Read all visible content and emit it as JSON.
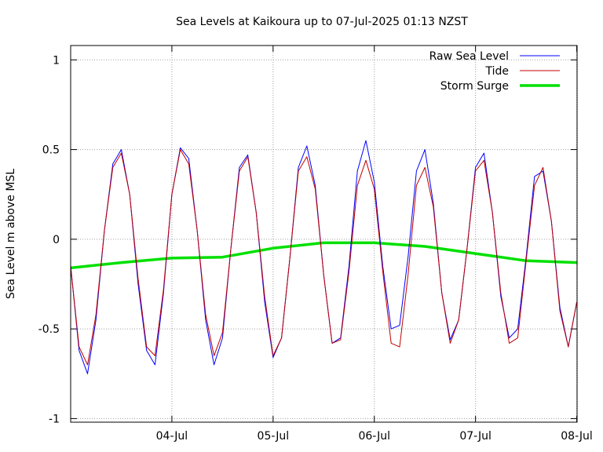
{
  "chart_data": {
    "type": "line",
    "title": "Sea Levels at Kaikoura up to 07-Jul-2025 01:13 NZST",
    "ylabel": "Sea Level m above MSL",
    "xlabel": "",
    "xlim": [
      "2025-07-03 00:00",
      "2025-07-08 00:05"
    ],
    "ylim": [
      -1.02,
      1.08
    ],
    "y_ticks": [
      {
        "value": 1,
        "label": "1"
      },
      {
        "value": 0.5,
        "label": "0.5"
      },
      {
        "value": 0,
        "label": "0"
      },
      {
        "value": -0.5,
        "label": "-0.5"
      },
      {
        "value": -1,
        "label": "-1"
      }
    ],
    "x_ticks": [
      {
        "value": "2025-07-04 00:00",
        "label": "04-Jul"
      },
      {
        "value": "2025-07-05 00:00",
        "label": "05-Jul"
      },
      {
        "value": "2025-07-06 00:00",
        "label": "06-Jul"
      },
      {
        "value": "2025-07-07 00:00",
        "label": "07-Jul"
      },
      {
        "value": "2025-07-08 00:00",
        "label": "08-Jul"
      }
    ],
    "grid": true,
    "legend_position": "top-right",
    "series": [
      {
        "name": "Raw Sea Level",
        "color": "#0000ff",
        "x": [
          "2025-07-03 00:00",
          "2025-07-03 02:00",
          "2025-07-03 04:00",
          "2025-07-03 06:00",
          "2025-07-03 08:00",
          "2025-07-03 10:00",
          "2025-07-03 12:00",
          "2025-07-03 14:00",
          "2025-07-03 16:00",
          "2025-07-03 18:00",
          "2025-07-03 20:00",
          "2025-07-03 22:00",
          "2025-07-04 00:00",
          "2025-07-04 02:00",
          "2025-07-04 04:00",
          "2025-07-04 06:00",
          "2025-07-04 08:00",
          "2025-07-04 10:00",
          "2025-07-04 12:00",
          "2025-07-04 14:00",
          "2025-07-04 16:00",
          "2025-07-04 18:00",
          "2025-07-04 20:00",
          "2025-07-04 22:00",
          "2025-07-05 00:00",
          "2025-07-05 02:00",
          "2025-07-05 04:00",
          "2025-07-05 06:00",
          "2025-07-05 08:00",
          "2025-07-05 10:00",
          "2025-07-05 12:00",
          "2025-07-05 14:00",
          "2025-07-05 16:00",
          "2025-07-05 18:00",
          "2025-07-05 20:00",
          "2025-07-05 22:00",
          "2025-07-06 00:00",
          "2025-07-06 02:00",
          "2025-07-06 04:00",
          "2025-07-06 06:00",
          "2025-07-06 08:00",
          "2025-07-06 10:00",
          "2025-07-06 12:00",
          "2025-07-06 14:00",
          "2025-07-06 16:00",
          "2025-07-06 18:00",
          "2025-07-06 20:00",
          "2025-07-06 22:00",
          "2025-07-07 00:00",
          "2025-07-07 02:00",
          "2025-07-07 04:00",
          "2025-07-07 06:00",
          "2025-07-07 08:00",
          "2025-07-07 10:00",
          "2025-07-07 12:00",
          "2025-07-07 14:00",
          "2025-07-07 16:00",
          "2025-07-07 18:00",
          "2025-07-07 20:00",
          "2025-07-07 22:00",
          "2025-07-08 00:00"
        ],
        "values": [
          -0.15,
          -0.62,
          -0.75,
          -0.45,
          0.05,
          0.42,
          0.5,
          0.25,
          -0.25,
          -0.62,
          -0.7,
          -0.3,
          0.25,
          0.51,
          0.45,
          0.05,
          -0.45,
          -0.7,
          -0.55,
          -0.05,
          0.4,
          0.47,
          0.15,
          -0.35,
          -0.66,
          -0.55,
          -0.1,
          0.4,
          0.52,
          0.3,
          -0.2,
          -0.58,
          -0.55,
          -0.15,
          0.38,
          0.55,
          0.32,
          -0.15,
          -0.5,
          -0.48,
          -0.1,
          0.38,
          0.5,
          0.2,
          -0.3,
          -0.56,
          -0.45,
          -0.05,
          0.4,
          0.48,
          0.15,
          -0.32,
          -0.55,
          -0.5,
          -0.1,
          0.35,
          0.38,
          0.1,
          -0.38,
          -0.6,
          -0.35
        ]
      },
      {
        "name": "Tide",
        "color": "#c00000",
        "x": [
          "2025-07-03 00:00",
          "2025-07-03 02:00",
          "2025-07-03 04:00",
          "2025-07-03 06:00",
          "2025-07-03 08:00",
          "2025-07-03 10:00",
          "2025-07-03 12:00",
          "2025-07-03 14:00",
          "2025-07-03 16:00",
          "2025-07-03 18:00",
          "2025-07-03 20:00",
          "2025-07-03 22:00",
          "2025-07-04 00:00",
          "2025-07-04 02:00",
          "2025-07-04 04:00",
          "2025-07-04 06:00",
          "2025-07-04 08:00",
          "2025-07-04 10:00",
          "2025-07-04 12:00",
          "2025-07-04 14:00",
          "2025-07-04 16:00",
          "2025-07-04 18:00",
          "2025-07-04 20:00",
          "2025-07-04 22:00",
          "2025-07-05 00:00",
          "2025-07-05 02:00",
          "2025-07-05 04:00",
          "2025-07-05 06:00",
          "2025-07-05 08:00",
          "2025-07-05 10:00",
          "2025-07-05 12:00",
          "2025-07-05 14:00",
          "2025-07-05 16:00",
          "2025-07-05 18:00",
          "2025-07-05 20:00",
          "2025-07-05 22:00",
          "2025-07-06 00:00",
          "2025-07-06 02:00",
          "2025-07-06 04:00",
          "2025-07-06 06:00",
          "2025-07-06 08:00",
          "2025-07-06 10:00",
          "2025-07-06 12:00",
          "2025-07-06 14:00",
          "2025-07-06 16:00",
          "2025-07-06 18:00",
          "2025-07-06 20:00",
          "2025-07-06 22:00",
          "2025-07-07 00:00",
          "2025-07-07 02:00",
          "2025-07-07 04:00",
          "2025-07-07 06:00",
          "2025-07-07 08:00",
          "2025-07-07 10:00",
          "2025-07-07 12:00",
          "2025-07-07 14:00",
          "2025-07-07 16:00",
          "2025-07-07 18:00",
          "2025-07-07 20:00",
          "2025-07-07 22:00",
          "2025-07-08 00:00"
        ],
        "values": [
          -0.15,
          -0.6,
          -0.7,
          -0.42,
          0.05,
          0.4,
          0.48,
          0.25,
          -0.22,
          -0.6,
          -0.65,
          -0.28,
          0.25,
          0.5,
          0.42,
          0.05,
          -0.42,
          -0.65,
          -0.52,
          -0.05,
          0.38,
          0.46,
          0.15,
          -0.32,
          -0.65,
          -0.55,
          -0.1,
          0.38,
          0.46,
          0.28,
          -0.2,
          -0.58,
          -0.56,
          -0.18,
          0.3,
          0.44,
          0.28,
          -0.18,
          -0.58,
          -0.6,
          -0.2,
          0.3,
          0.4,
          0.18,
          -0.3,
          -0.58,
          -0.45,
          -0.05,
          0.38,
          0.44,
          0.15,
          -0.3,
          -0.58,
          -0.55,
          -0.12,
          0.3,
          0.4,
          0.1,
          -0.4,
          -0.6,
          -0.35
        ]
      },
      {
        "name": "Storm Surge",
        "color": "#00e000",
        "x": [
          "2025-07-03 00:00",
          "2025-07-03 12:00",
          "2025-07-04 00:00",
          "2025-07-04 12:00",
          "2025-07-05 00:00",
          "2025-07-05 12:00",
          "2025-07-06 00:00",
          "2025-07-06 12:00",
          "2025-07-07 00:00",
          "2025-07-07 12:00",
          "2025-07-08 00:05"
        ],
        "values": [
          -0.16,
          -0.13,
          -0.105,
          -0.1,
          -0.05,
          -0.02,
          -0.02,
          -0.04,
          -0.08,
          -0.12,
          -0.13
        ]
      }
    ]
  }
}
